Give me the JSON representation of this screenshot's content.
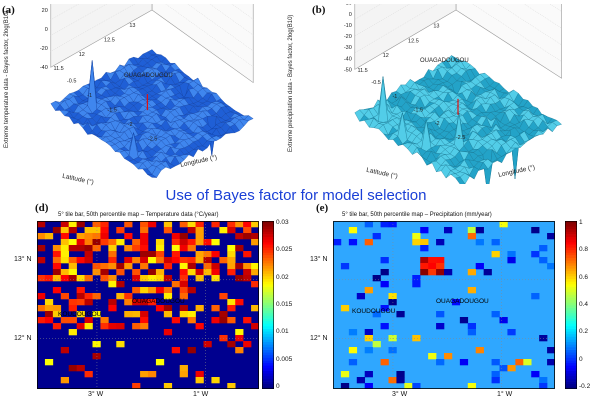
{
  "caption": "Use of Bayes factor for model selection",
  "panels": {
    "a": {
      "letter": "(a)",
      "zlabel": "Extreme temperature data - Bayes factor, 2log(B10)",
      "xlabel": "Longitude (°)",
      "ylabel": "Latitude (°)",
      "zticks": [
        "60",
        "40",
        "20",
        "0",
        "-20",
        "-40"
      ],
      "xticks": [
        "-0.5",
        "-1",
        "-1.5",
        "-2",
        "-2.5"
      ],
      "yticks": [
        "13",
        "12.5",
        "12",
        "11.5"
      ],
      "annotation": "OUAGADOUGOU"
    },
    "b": {
      "letter": "(b)",
      "zlabel": "Extreme precipitation data - Bayes factor, 2log(B10)",
      "xlabel": "Longitude (°)",
      "ylabel": "Latitude (°)",
      "zticks": [
        "40",
        "30",
        "20",
        "10",
        "0",
        "-10",
        "-20",
        "-30",
        "-40",
        "-50"
      ],
      "xticks": [
        "-0.5",
        "-1",
        "-1.5",
        "-2",
        "-2.5"
      ],
      "yticks": [
        "13",
        "12.5",
        "12",
        "11.5"
      ],
      "annotation": "OUAGADOUGOU"
    },
    "d": {
      "letter": "(d)",
      "title": "5° tile bar, 50th percentile map – Temperature data (°C/year)",
      "ylabels": [
        "13° N",
        "12° N"
      ],
      "xlabels": [
        "3° W",
        "1° W"
      ],
      "colorbar_ticks": [
        "0.03",
        "0.025",
        "0.02",
        "0.015",
        "0.01",
        "0.005",
        "0"
      ],
      "stations": [
        "OUAGADOUGOU",
        "KOUDOUGOU"
      ]
    },
    "e": {
      "letter": "(e)",
      "title": "5° tile bar, 50th percentile map – Precipitation (mm/year)",
      "ylabels": [
        "13° N",
        "12° N"
      ],
      "xlabels": [
        "3° W",
        "1° W"
      ],
      "colorbar_ticks": [
        "1",
        "0.8",
        "0.6",
        "0.4",
        "0.2",
        "0",
        "-0.2"
      ],
      "stations": [
        "OUAGADOUGOU",
        "KOUDOUGOU"
      ]
    }
  },
  "chart_data": [
    {
      "type": "heatmap",
      "panel": "d",
      "rows": 28,
      "cols": 28,
      "clim": [
        0,
        0.03
      ],
      "colormap": "jet",
      "note": "values sampled per-cell; mostly dark-blue (0) background with scattered orange/red/yellow cells concentrated in the upper portion"
    },
    {
      "type": "heatmap",
      "panel": "e",
      "rows": 28,
      "cols": 28,
      "clim": [
        -0.2,
        1
      ],
      "colormap": "jet",
      "note": "mostly light-blue (~0) background with sparse darker blue and yellow/red cells; red hot-spot near upper centre"
    }
  ],
  "colors": {
    "caption": "#1a3fd6",
    "surface_a": "#1d5fd8",
    "surface_b": "#26a6c9"
  }
}
